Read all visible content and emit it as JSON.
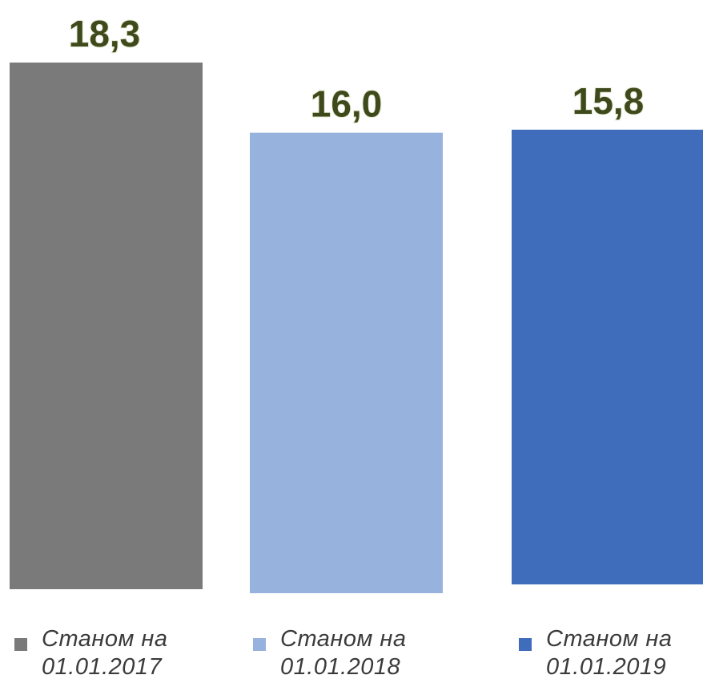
{
  "chart_data": {
    "type": "bar",
    "categories": [
      "Станом на 01.01.2017",
      "Станом на 01.01.2018",
      "Станом на 01.01.2019"
    ],
    "values": [
      18.3,
      16.0,
      15.8
    ],
    "data_labels": [
      "18,3",
      "16,0",
      "15,8"
    ],
    "colors": [
      "#7a7a7a",
      "#98b2de",
      "#3f6cbb"
    ],
    "title": "",
    "xlabel": "",
    "ylabel": "",
    "ylim": [
      0,
      18.3
    ],
    "grid": false,
    "legend_placement": "bottom"
  },
  "legend": [
    {
      "line1": "Станом на",
      "line2": "01.01.2017",
      "color": "#7a7a7a"
    },
    {
      "line1": "Станом на",
      "line2": "01.01.2018",
      "color": "#98b2de"
    },
    {
      "line1": "Станом на",
      "line2": "01.01.2019",
      "color": "#3f6cbb"
    }
  ]
}
